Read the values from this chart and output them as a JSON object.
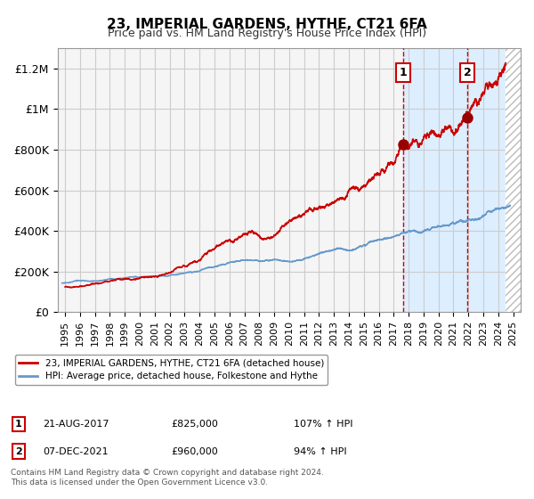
{
  "title": "23, IMPERIAL GARDENS, HYTHE, CT21 6FA",
  "subtitle": "Price paid vs. HM Land Registry's House Price Index (HPI)",
  "xlabel": "",
  "ylabel": "",
  "ylim": [
    0,
    1300000
  ],
  "xlim": [
    1994.5,
    2025.5
  ],
  "yticks": [
    0,
    200000,
    400000,
    600000,
    800000,
    1000000,
    1200000
  ],
  "ytick_labels": [
    "£0",
    "£200K",
    "£400K",
    "£600K",
    "£800K",
    "£1M",
    "£1.2M"
  ],
  "xticks": [
    1995,
    1996,
    1997,
    1998,
    1999,
    2000,
    2001,
    2002,
    2003,
    2004,
    2005,
    2006,
    2007,
    2008,
    2009,
    2010,
    2011,
    2012,
    2013,
    2014,
    2015,
    2016,
    2017,
    2018,
    2019,
    2020,
    2021,
    2022,
    2023,
    2024,
    2025
  ],
  "red_line_color": "#cc0000",
  "blue_line_color": "#6699cc",
  "marker_color": "#990000",
  "grid_color": "#cccccc",
  "bg_color": "#ffffff",
  "plot_bg_color": "#f5f5f5",
  "highlight_bg_color": "#ddeeff",
  "hatch_color": "#cccccc",
  "vline_color": "#cc0000",
  "point1_x": 2017.644,
  "point1_y": 825000,
  "point2_x": 2021.933,
  "point2_y": 960000,
  "legend_line1": "23, IMPERIAL GARDENS, HYTHE, CT21 6FA (detached house)",
  "legend_line2": "HPI: Average price, detached house, Folkestone and Hythe",
  "table_row1": [
    "1",
    "21-AUG-2017",
    "£825,000",
    "107% ↑ HPI"
  ],
  "table_row2": [
    "2",
    "07-DEC-2021",
    "£960,000",
    "94% ↑ HPI"
  ],
  "footnote1": "Contains HM Land Registry data © Crown copyright and database right 2024.",
  "footnote2": "This data is licensed under the Open Government Licence v3.0."
}
